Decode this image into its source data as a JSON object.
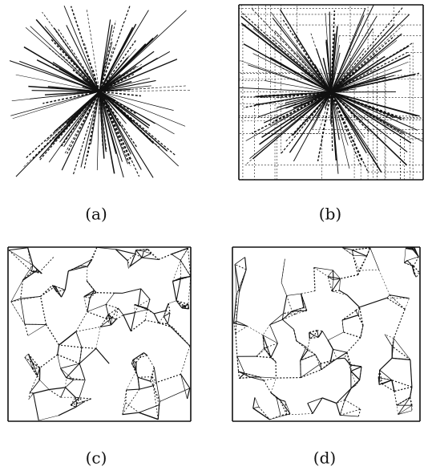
{
  "figures": [
    {
      "label": "(a)"
    },
    {
      "label": "(b)"
    },
    {
      "label": "(c)"
    },
    {
      "label": "(d)"
    }
  ]
}
